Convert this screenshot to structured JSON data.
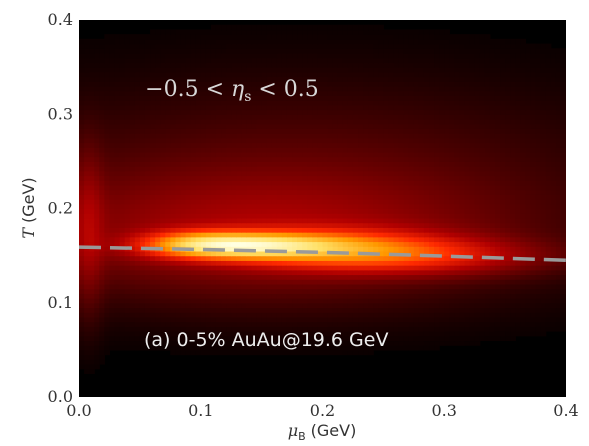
{
  "chart_data": {
    "type": "heatmap",
    "xlabel_symbol": "μ",
    "xlabel_sub": "B",
    "xlabel_unit": "(GeV)",
    "ylabel_symbol": "T",
    "ylabel_unit": "(GeV)",
    "xlim": [
      0.0,
      0.4
    ],
    "ylim": [
      0.0,
      0.4
    ],
    "xticks": [
      0.0,
      0.1,
      0.2,
      0.3,
      0.4
    ],
    "yticks": [
      0.0,
      0.1,
      0.2,
      0.3,
      0.4
    ],
    "xtick_labels": [
      "0.0",
      "0.1",
      "0.2",
      "0.3",
      "0.4"
    ],
    "ytick_labels": [
      "0.0",
      "0.1",
      "0.2",
      "0.3",
      "0.4"
    ],
    "colormap": [
      "#000000",
      "#5a0000",
      "#b00000",
      "#ff2a00",
      "#ff9a00",
      "#ffe066",
      "#ffffe0"
    ],
    "background_color": "#000000",
    "density_peak": {
      "mu_B": 0.14,
      "T": 0.161
    },
    "density_components": [
      {
        "mu_B": 0.14,
        "T": 0.161,
        "sigma_mu": 0.045,
        "sigma_T": 0.0085,
        "weight": 1.0
      },
      {
        "mu_B": 0.1,
        "T": 0.163,
        "sigma_mu": 0.03,
        "sigma_T": 0.009,
        "weight": 0.5
      },
      {
        "mu_B": 0.21,
        "T": 0.158,
        "sigma_mu": 0.06,
        "sigma_T": 0.013,
        "weight": 0.55
      },
      {
        "mu_B": 0.28,
        "T": 0.15,
        "sigma_mu": 0.06,
        "sigma_T": 0.012,
        "weight": 0.28
      },
      {
        "mu_B": 0.15,
        "T": 0.175,
        "sigma_mu": 0.12,
        "sigma_T": 0.04,
        "weight": 0.18
      },
      {
        "mu_B": 0.18,
        "T": 0.23,
        "sigma_mu": 0.15,
        "sigma_T": 0.06,
        "weight": 0.06
      },
      {
        "mu_B": 0.008,
        "T": 0.18,
        "sigma_mu": 0.008,
        "sigma_T": 0.05,
        "weight": 0.14
      }
    ],
    "series": [
      {
        "type": "dashed-line",
        "color": "#9a9a9a",
        "x": [
          0.0,
          0.1,
          0.2,
          0.3,
          0.4
        ],
        "y": [
          0.159,
          0.1565,
          0.1535,
          0.1495,
          0.145
        ]
      }
    ],
    "annotations": {
      "eta_left": "−0.5 < ",
      "eta_sym": "η",
      "eta_sub": "s",
      "eta_right": " < 0.5",
      "panel": "(a)    0-5% AuAu@19.6 GeV"
    }
  }
}
